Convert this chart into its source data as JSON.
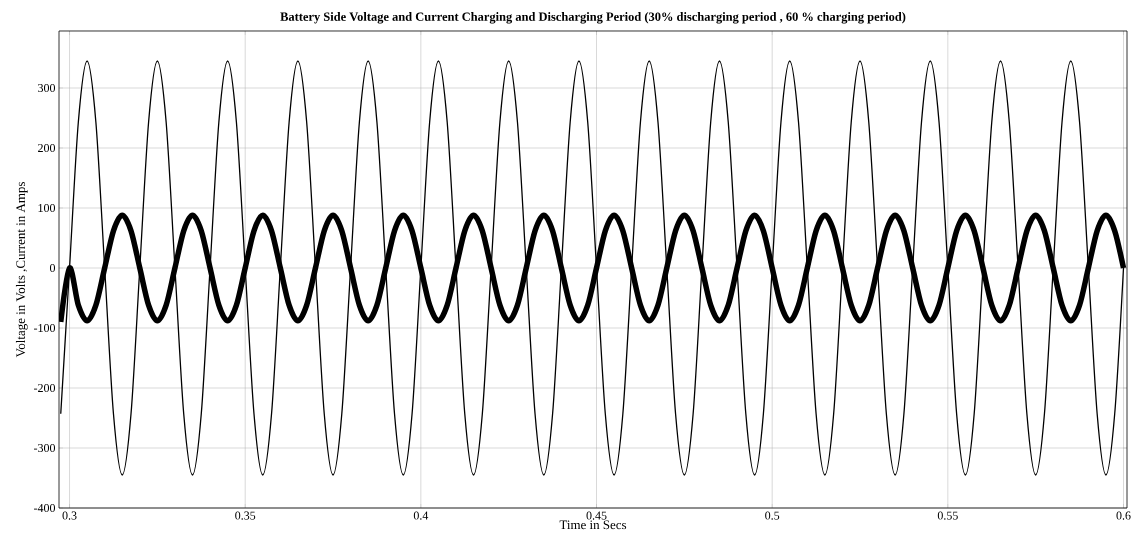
{
  "chart_data": {
    "type": "line",
    "title": "Battery Side Voltage and Current Charging and Discharging Period (30% discharging period , 60 % charging period)",
    "xlabel": "Time in Secs",
    "ylabel": "Voltage in Volts ,Current in Amps",
    "x": [
      0.2975,
      0.3,
      0.3025,
      0.305,
      0.3075,
      0.31,
      0.3125,
      0.315,
      0.3175,
      0.32,
      0.3225,
      0.325,
      0.3275,
      0.33,
      0.3325,
      0.335,
      0.3375,
      0.34,
      0.3425,
      0.345,
      0.3475,
      0.35,
      0.3525,
      0.355,
      0.3575,
      0.36,
      0.3625,
      0.365,
      0.3675,
      0.37,
      0.3725,
      0.375,
      0.3775,
      0.38,
      0.3825,
      0.385,
      0.3875,
      0.39,
      0.3925,
      0.395,
      0.3975,
      0.4,
      0.4025,
      0.405,
      0.4075,
      0.41,
      0.4125,
      0.415,
      0.4175,
      0.42,
      0.4225,
      0.425,
      0.4275,
      0.43,
      0.4325,
      0.435,
      0.4375,
      0.44,
      0.4425,
      0.445,
      0.4475,
      0.45,
      0.4525,
      0.455,
      0.4575,
      0.46,
      0.4625,
      0.465,
      0.4675,
      0.47,
      0.4725,
      0.475,
      0.4775,
      0.48,
      0.4825,
      0.485,
      0.4875,
      0.49,
      0.4925,
      0.495,
      0.4975,
      0.5,
      0.5025,
      0.505,
      0.5075,
      0.51,
      0.5125,
      0.515,
      0.5175,
      0.52,
      0.5225,
      0.525,
      0.5275,
      0.53,
      0.5325,
      0.535,
      0.5375,
      0.54,
      0.5425,
      0.545,
      0.5475,
      0.55,
      0.5525,
      0.555,
      0.5575,
      0.56,
      0.5625,
      0.565,
      0.5675,
      0.57,
      0.5725,
      0.575,
      0.5775,
      0.58,
      0.5825,
      0.585,
      0.5875,
      0.59,
      0.5925,
      0.595,
      0.5975,
      0.6
    ],
    "series": [
      {
        "color": "#000000",
        "values": [
          -243,
          0,
          243,
          345,
          243,
          0,
          -243,
          -345,
          -243,
          0,
          243,
          345,
          243,
          0,
          -243,
          -345,
          -243,
          0,
          243,
          345,
          243,
          0,
          -243,
          -345,
          -243,
          0,
          243,
          345,
          243,
          0,
          -243,
          -345,
          -243,
          0,
          243,
          345,
          243,
          0,
          -243,
          -345,
          -243,
          0,
          243,
          345,
          243,
          0,
          -243,
          -345,
          -243,
          0,
          243,
          345,
          243,
          0,
          -243,
          -345,
          -243,
          0,
          243,
          345,
          243,
          0,
          -243,
          -345,
          -243,
          0,
          243,
          345,
          243,
          0,
          -243,
          -345,
          -243,
          0,
          243,
          345,
          243,
          0,
          -243,
          -345,
          -243,
          0,
          243,
          345,
          243,
          0,
          -243,
          -345,
          -243,
          0,
          243,
          345,
          243,
          0,
          -243,
          -345,
          -243,
          0,
          243,
          345,
          243,
          0,
          -243,
          -345,
          -243,
          0,
          243,
          345,
          243,
          0,
          -243,
          -345,
          -243,
          0,
          243,
          345,
          243,
          0,
          -243,
          -345,
          -243,
          0
        ]
      },
      {
        "color": "#000000",
        "values": [
          -90,
          0,
          -62,
          -88,
          -62,
          0,
          62,
          88,
          62,
          0,
          -62,
          -88,
          -62,
          0,
          62,
          88,
          62,
          0,
          -62,
          -88,
          -62,
          0,
          62,
          88,
          62,
          0,
          -62,
          -88,
          -62,
          0,
          62,
          88,
          62,
          0,
          -62,
          -88,
          -62,
          0,
          62,
          88,
          62,
          0,
          -62,
          -88,
          -62,
          0,
          62,
          88,
          62,
          0,
          -62,
          -88,
          -62,
          0,
          62,
          88,
          62,
          0,
          -62,
          -88,
          -62,
          0,
          62,
          88,
          62,
          0,
          -62,
          -88,
          -62,
          0,
          62,
          88,
          62,
          0,
          -62,
          -88,
          -62,
          0,
          62,
          88,
          62,
          0,
          -62,
          -88,
          -62,
          0,
          62,
          88,
          62,
          0,
          -62,
          -88,
          -62,
          0,
          62,
          88,
          62,
          0,
          -62,
          -88,
          -62,
          0,
          62,
          88,
          62,
          0,
          -62,
          -88,
          -62,
          0,
          62,
          88,
          62,
          0,
          -62,
          -88,
          -62,
          0,
          62,
          88,
          62,
          0
        ]
      }
    ],
    "xlim": [
      0.297,
      0.601
    ],
    "ylim": [
      -400,
      395
    ],
    "xticks": [
      0.3,
      0.35,
      0.4,
      0.45,
      0.5,
      0.55,
      0.6
    ],
    "yticks": [
      -400,
      -300,
      -200,
      -100,
      0,
      100,
      200,
      300
    ],
    "grid": true,
    "line_style": "solid",
    "marker": "none"
  }
}
